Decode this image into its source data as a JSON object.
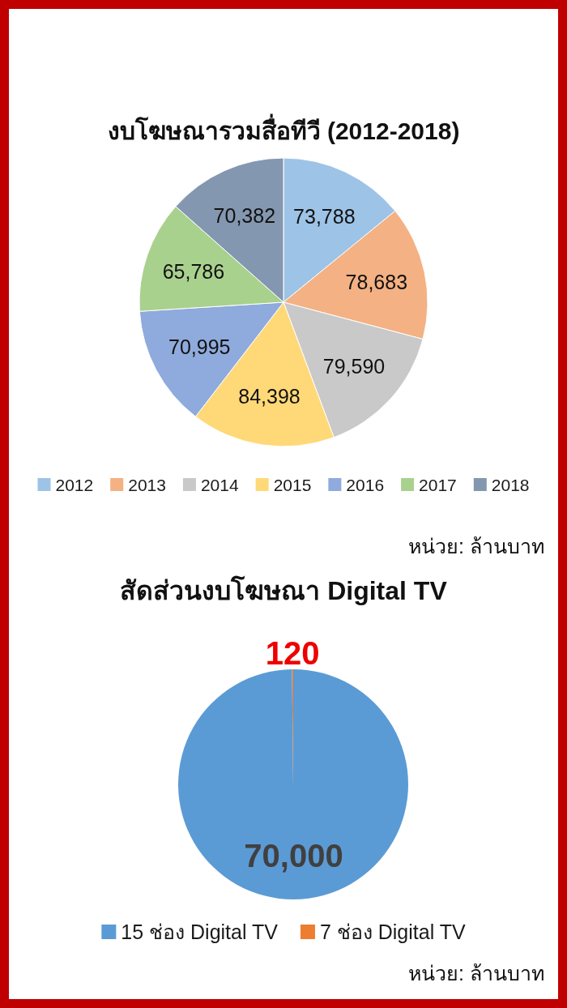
{
  "chart_data": [
    {
      "type": "pie",
      "title": "งบโฆษณารวมสื่อทีวี (2012-2018)",
      "categories": [
        "2012",
        "2013",
        "2014",
        "2015",
        "2016",
        "2017",
        "2018"
      ],
      "values": [
        73788,
        78683,
        79590,
        84398,
        70995,
        65786,
        70382
      ],
      "colors": [
        "#9dc3e6",
        "#f4b183",
        "#c9c9c9",
        "#ffd878",
        "#8faadc",
        "#a9d18e",
        "#8497b0"
      ],
      "value_labels": [
        "73,788",
        "78,683",
        "79,590",
        "84,398",
        "70,995",
        "65,786",
        "70,382"
      ],
      "legend": "bottom",
      "annotations": [
        "หน่วย: ล้านบาท"
      ]
    },
    {
      "type": "pie",
      "title": "สัดส่วนงบโฆษณา Digital TV",
      "categories": [
        "15 ช่อง Digital TV",
        "7 ช่อง Digital TV"
      ],
      "values": [
        70000,
        120
      ],
      "colors": [
        "#5b9bd5",
        "#ed7d31"
      ],
      "value_labels": [
        "70,000",
        "120"
      ],
      "legend": "bottom",
      "annotations": [
        "หน่วย: ล้านบาท"
      ]
    }
  ]
}
